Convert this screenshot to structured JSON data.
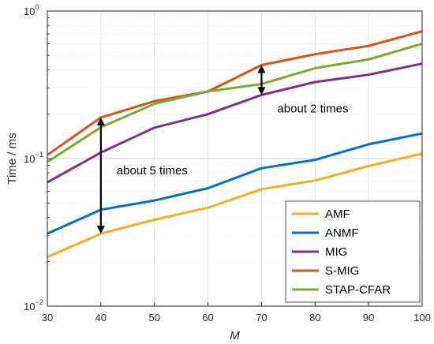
{
  "chart_data": {
    "type": "line",
    "title": "",
    "xlabel": "M",
    "ylabel": "Time / ms",
    "x": [
      30,
      40,
      50,
      60,
      70,
      80,
      90,
      100
    ],
    "xlim": [
      30,
      100
    ],
    "ylim": [
      0.01,
      1
    ],
    "yscale": "log",
    "grid": true,
    "x_ticks": [
      "30",
      "40",
      "50",
      "60",
      "70",
      "80",
      "90",
      "100"
    ],
    "y_ticks": [
      {
        "value": 0.01,
        "base": "10",
        "exp": "−2"
      },
      {
        "value": 0.1,
        "base": "10",
        "exp": "−1"
      },
      {
        "value": 1,
        "base": "10",
        "exp": "0"
      }
    ],
    "legend_position": "bottom-right",
    "series": [
      {
        "name": "AMF",
        "color": "#EDB120",
        "values": [
          0.0215,
          0.031,
          0.0385,
          0.0465,
          0.062,
          0.071,
          0.089,
          0.108
        ]
      },
      {
        "name": "ANMF",
        "color": "#0072BD",
        "values": [
          0.031,
          0.045,
          0.052,
          0.063,
          0.086,
          0.098,
          0.125,
          0.148
        ]
      },
      {
        "name": "MIG",
        "color": "#7E2F8E",
        "values": [
          0.069,
          0.11,
          0.162,
          0.2,
          0.27,
          0.33,
          0.37,
          0.44
        ]
      },
      {
        "name": "S-MIG",
        "color": "#D95319",
        "values": [
          0.106,
          0.19,
          0.245,
          0.285,
          0.43,
          0.51,
          0.58,
          0.73
        ]
      },
      {
        "name": "STAP-CFAR",
        "color": "#77AC30",
        "values": [
          0.095,
          0.163,
          0.235,
          0.285,
          0.32,
          0.41,
          0.47,
          0.6
        ]
      }
    ],
    "annotations": [
      {
        "text": "about 5 times",
        "x": 40,
        "y_from": 0.031,
        "y_to": 0.19
      },
      {
        "text": "about 2 times",
        "x": 70,
        "y_from": 0.27,
        "y_to": 0.43
      }
    ]
  }
}
